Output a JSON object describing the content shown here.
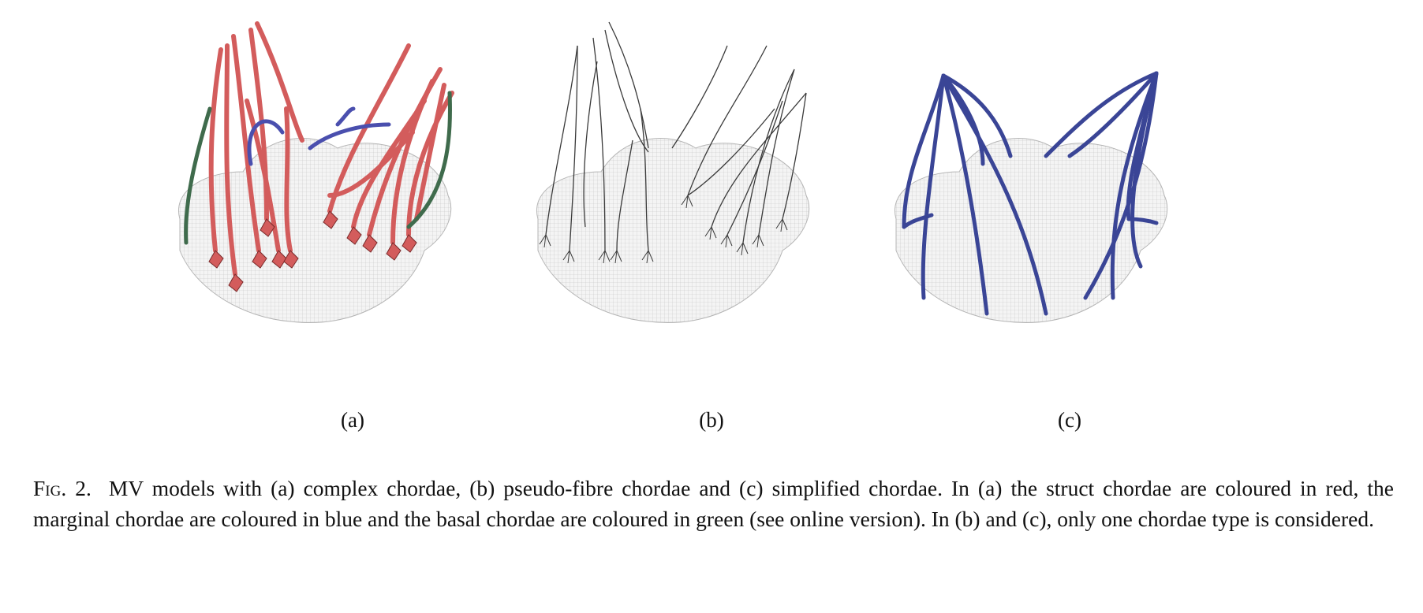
{
  "figure": {
    "panels": [
      {
        "id": "a",
        "label": "(a)",
        "chordae_colours": {
          "struct": "#d35c5c",
          "marginal": "#4a4fae",
          "basal": "#3f6b4c"
        }
      },
      {
        "id": "b",
        "label": "(b)",
        "chordae_colours": {
          "pseudo_fibre": "#444444"
        }
      },
      {
        "id": "c",
        "label": "(c)",
        "chordae_colours": {
          "simplified": "#3a4596"
        }
      }
    ],
    "mesh_colour": "#e6e6e6",
    "caption": {
      "label": "Fig. 2.",
      "text": "MV models with (a) complex chordae, (b) pseudo-fibre chordae and (c) simplified chordae. In (a) the struct chordae are coloured in red, the marginal chordae are coloured in blue and the basal chordae are coloured in green (see online version). In (b) and (c), only one chordae type is considered."
    }
  }
}
